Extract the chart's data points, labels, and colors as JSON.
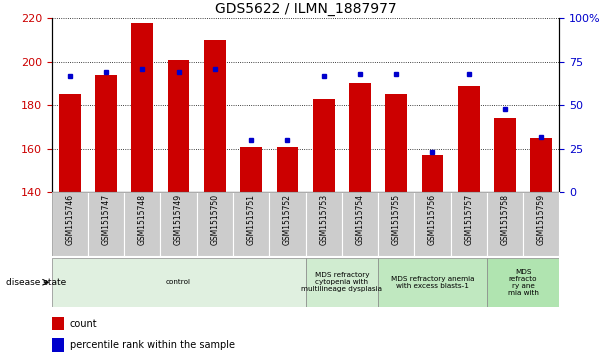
{
  "title": "GDS5622 / ILMN_1887977",
  "samples": [
    "GSM1515746",
    "GSM1515747",
    "GSM1515748",
    "GSM1515749",
    "GSM1515750",
    "GSM1515751",
    "GSM1515752",
    "GSM1515753",
    "GSM1515754",
    "GSM1515755",
    "GSM1515756",
    "GSM1515757",
    "GSM1515758",
    "GSM1515759"
  ],
  "counts": [
    185,
    194,
    218,
    201,
    210,
    161,
    161,
    183,
    190,
    185,
    157,
    189,
    174,
    165
  ],
  "percentile_ranks": [
    67,
    69,
    71,
    69,
    71,
    30,
    30,
    67,
    68,
    68,
    23,
    68,
    48,
    32
  ],
  "ylim_left": [
    140,
    220
  ],
  "ylim_right": [
    0,
    100
  ],
  "yticks_left": [
    140,
    160,
    180,
    200,
    220
  ],
  "yticks_right": [
    0,
    25,
    50,
    75,
    100
  ],
  "bar_color": "#cc0000",
  "dot_color": "#0000cc",
  "bar_bottom": 140,
  "disease_groups": [
    {
      "label": "control",
      "start": 0,
      "end": 7,
      "color": "#e0f0e0"
    },
    {
      "label": "MDS refractory\ncytopenia with\nmultilineage dysplasia",
      "start": 7,
      "end": 9,
      "color": "#d0ecd0"
    },
    {
      "label": "MDS refractory anemia\nwith excess blasts-1",
      "start": 9,
      "end": 12,
      "color": "#c0e8c0"
    },
    {
      "label": "MDS\nrefracto\nry ane\nmia with",
      "start": 12,
      "end": 14,
      "color": "#b0e4b0"
    }
  ],
  "disease_state_label": "disease state",
  "legend_items": [
    {
      "label": "count",
      "color": "#cc0000"
    },
    {
      "label": "percentile rank within the sample",
      "color": "#0000cc"
    }
  ],
  "sample_box_color": "#cccccc",
  "grid_color": "#000000",
  "right_ytick_labels": [
    "0",
    "25",
    "50",
    "75",
    "100%"
  ]
}
